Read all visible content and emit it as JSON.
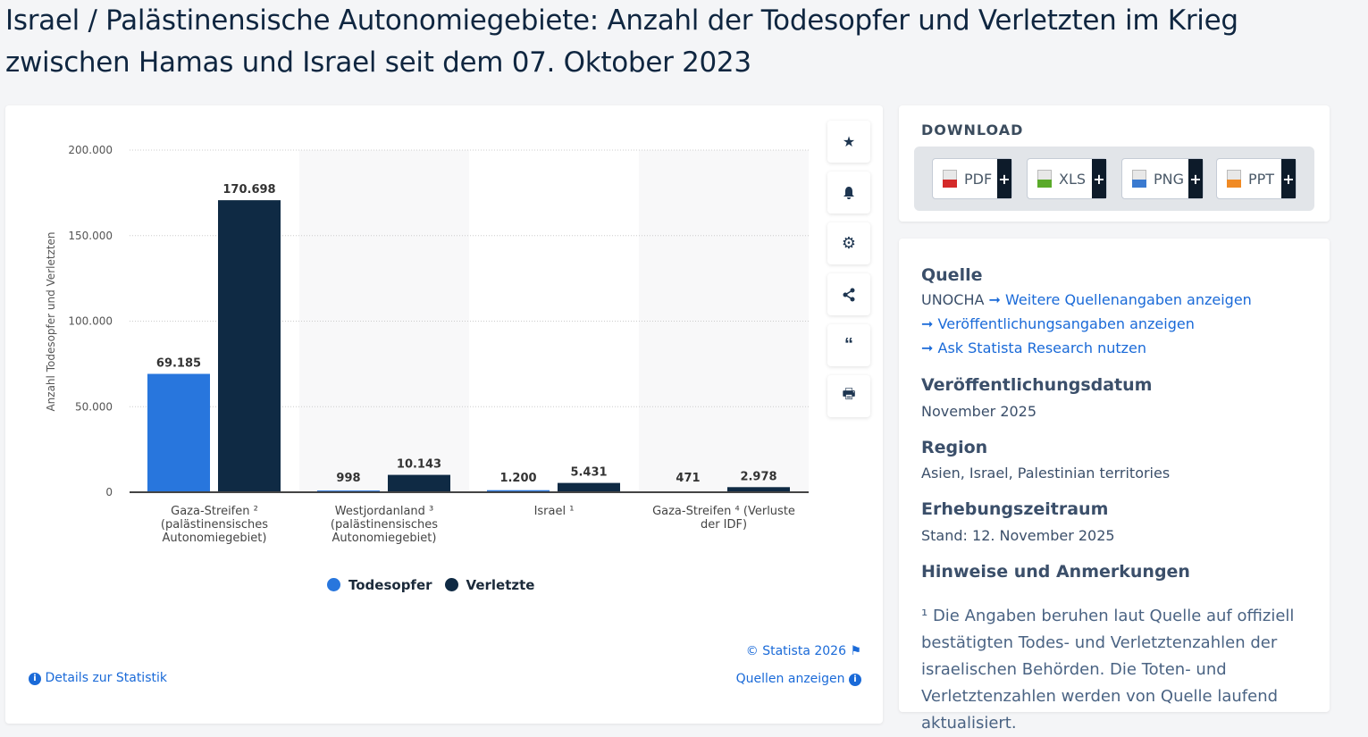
{
  "title": "Israel / Palästinensische Autonomiegebiete: Anzahl der Todesopfer und Verletzten im Krieg zwischen Hamas und Israel seit dem 07. Oktober 2023",
  "chart_data": {
    "type": "bar",
    "ylabel": "Anzahl Todesopfer und Verletzten",
    "ylim": [
      0,
      200000
    ],
    "yticks": [
      0,
      50000,
      100000,
      150000,
      200000
    ],
    "ytick_labels": [
      "0",
      "50.000",
      "100.000",
      "150.000",
      "200.000"
    ],
    "grid": true,
    "legend_position": "bottom",
    "categories": [
      "Gaza-Streifen ² (palästinensisches Autonomiegebiet)",
      "Westjordanland ³ (palästinensisches Autonomiegebiet)",
      "Israel ¹",
      "Gaza-Streifen ⁴ (Verluste der IDF)"
    ],
    "category_lines": [
      [
        "Gaza-Streifen ²",
        "(palästinensisches",
        "Autonomiegebiet)"
      ],
      [
        "Westjordanland ³",
        "(palästinensisches",
        "Autonomiegebiet)"
      ],
      [
        "Israel ¹"
      ],
      [
        "Gaza-Streifen ⁴ (Verluste",
        "der IDF)"
      ]
    ],
    "series": [
      {
        "name": "Todesopfer",
        "color": "#2876dd",
        "values": [
          69185,
          998,
          1200,
          471
        ],
        "labels": [
          "69.185",
          "998",
          "1.200",
          "471"
        ]
      },
      {
        "name": "Verletzte",
        "color": "#0f2a44",
        "values": [
          170698,
          10143,
          5431,
          2978
        ],
        "labels": [
          "170.698",
          "10.143",
          "5.431",
          "2.978"
        ]
      }
    ]
  },
  "tools": [
    "star-icon",
    "bell-icon",
    "gear-icon",
    "share-icon",
    "quote-icon",
    "print-icon"
  ],
  "footer": {
    "copyright": "© Statista 2026",
    "sources": "Quellen anzeigen",
    "details": "Details zur Statistik"
  },
  "download": {
    "title": "DOWNLOAD",
    "buttons": [
      {
        "label": "PDF",
        "color": "#d42a2a"
      },
      {
        "label": "XLS",
        "color": "#5aaa2a"
      },
      {
        "label": "PNG",
        "color": "#3a7ad0"
      },
      {
        "label": "PPT",
        "color": "#f08a24"
      }
    ],
    "plus": "+"
  },
  "meta": {
    "source_h": "Quelle",
    "source": "UNOCHA",
    "more_sources": "Weitere Quellenangaben anzeigen",
    "publication_info": "Veröffentlichungsangaben anzeigen",
    "ask": "Ask Statista Research nutzen",
    "date_h": "Veröffentlichungsdatum",
    "date": "November 2025",
    "region_h": "Region",
    "region": "Asien, Israel, Palestinian territories",
    "period_h": "Erhebungszeitraum",
    "period": "Stand: 12. November 2025",
    "notes_h": "Hinweise und Anmerkungen",
    "notes": "¹ Die Angaben beruhen laut Quelle auf offiziell bestätigten Todes- und Verletztenzahlen der israelischen Behörden. Die Toten- und Verletztenzahlen werden von Quelle laufend aktualisiert."
  }
}
